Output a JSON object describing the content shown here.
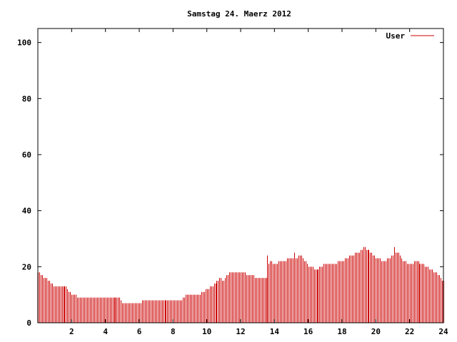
{
  "chart_data": {
    "type": "bar",
    "title": "Samstag 24. Maerz 2012",
    "xlabel": "",
    "ylabel": "",
    "xlim": [
      0,
      24
    ],
    "ylim": [
      0,
      105
    ],
    "x_ticks": [
      2,
      4,
      6,
      8,
      10,
      12,
      14,
      16,
      18,
      20,
      22,
      24
    ],
    "y_ticks": [
      0,
      20,
      40,
      60,
      80,
      100
    ],
    "grid": false,
    "legend": "top-right",
    "series_color": "#cc0000",
    "series": [
      {
        "name": "User",
        "points": [
          [
            0.0,
            18
          ],
          [
            1.0,
            13
          ],
          [
            1.6,
            13
          ],
          [
            2.0,
            10
          ],
          [
            2.5,
            9
          ],
          [
            3.0,
            9
          ],
          [
            4.0,
            9
          ],
          [
            4.8,
            9
          ],
          [
            5.0,
            7
          ],
          [
            6.0,
            7
          ],
          [
            6.2,
            8
          ],
          [
            7.0,
            8
          ],
          [
            8.0,
            8
          ],
          [
            8.5,
            8
          ],
          [
            8.8,
            10
          ],
          [
            9.5,
            10
          ],
          [
            10.0,
            12
          ],
          [
            10.5,
            14
          ],
          [
            10.8,
            16
          ],
          [
            11.0,
            15
          ],
          [
            11.3,
            18
          ],
          [
            12.0,
            18
          ],
          [
            12.5,
            17
          ],
          [
            13.0,
            16
          ],
          [
            13.5,
            16
          ],
          [
            13.7,
            22
          ],
          [
            14.0,
            21
          ],
          [
            14.5,
            22
          ],
          [
            15.0,
            23
          ],
          [
            15.3,
            23
          ],
          [
            15.5,
            24
          ],
          [
            15.7,
            23
          ],
          [
            16.0,
            20
          ],
          [
            16.5,
            19
          ],
          [
            17.0,
            21
          ],
          [
            17.5,
            21
          ],
          [
            18.0,
            22
          ],
          [
            18.5,
            24
          ],
          [
            19.0,
            25
          ],
          [
            19.3,
            27
          ],
          [
            19.7,
            25
          ],
          [
            20.0,
            23
          ],
          [
            20.5,
            22
          ],
          [
            21.0,
            24
          ],
          [
            21.3,
            25
          ],
          [
            21.6,
            22
          ],
          [
            22.0,
            21
          ],
          [
            22.4,
            22
          ],
          [
            23.0,
            20
          ],
          [
            23.5,
            18
          ],
          [
            24.0,
            15
          ]
        ],
        "spikes": [
          [
            21.1,
            27
          ],
          [
            15.2,
            25
          ],
          [
            13.6,
            24
          ]
        ]
      }
    ]
  }
}
